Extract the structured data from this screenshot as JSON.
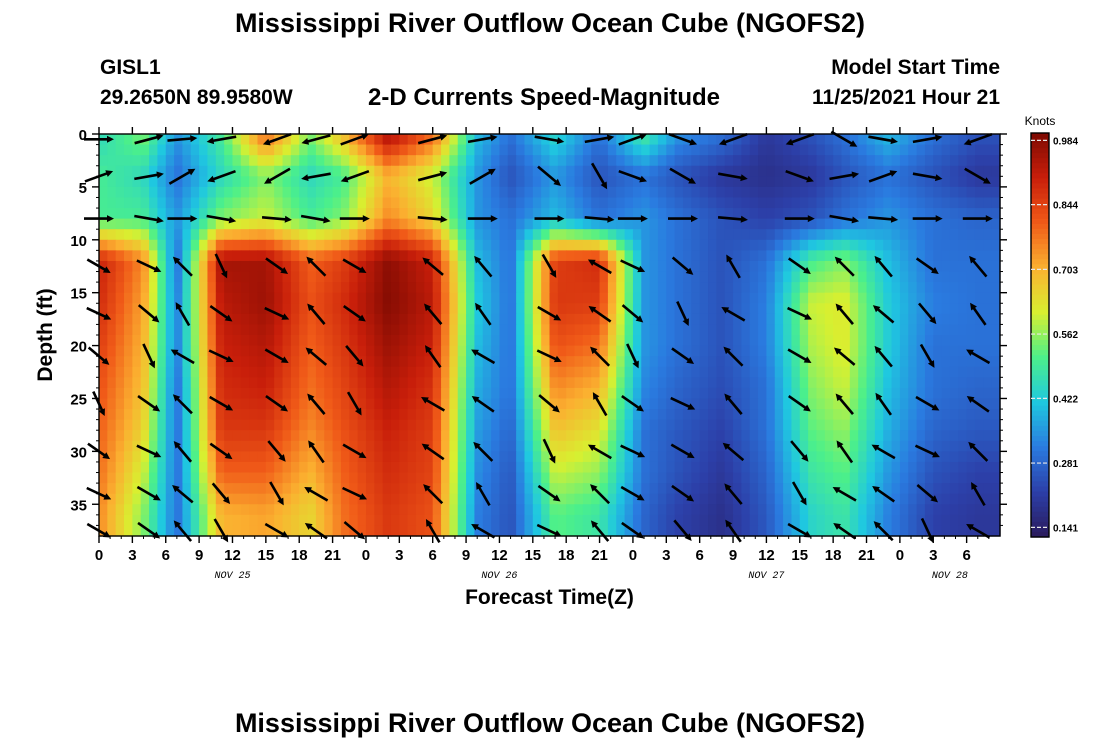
{
  "page": {
    "title": "Mississippi River Outflow Ocean Cube (NGOFS2)",
    "title_repeat": "Mississippi River Outflow Ocean Cube (NGOFS2)",
    "station": "GISL1",
    "coordinates": "29.2650N  89.9580W",
    "subtitle": "2-D Currents Speed-Magnitude",
    "model_start_label": "Model Start Time",
    "model_start_value": "11/25/2021 Hour 21"
  },
  "chart_data": {
    "type": "heatmap",
    "xlabel": "Forecast Time(Z)",
    "ylabel": "Depth (ft)",
    "colorbar_label": "Knots",
    "colorbar_ticks": [
      0.141,
      0.281,
      0.422,
      0.562,
      0.703,
      0.844,
      0.984
    ],
    "colorbar_range": [
      0.12,
      1.0
    ],
    "colors": [
      "#2a1a5c",
      "#2c3fa8",
      "#2a7be0",
      "#1fc8e0",
      "#4cf08a",
      "#d8f030",
      "#fbb030",
      "#f05a18",
      "#c81e0a",
      "#7e0a02"
    ],
    "xlim": [
      0,
      81
    ],
    "x_units": "hours since NOV 25 00Z",
    "x_ticks": [
      "0",
      "3",
      "6",
      "9",
      "12",
      "15",
      "18",
      "21",
      "0",
      "3",
      "6",
      "9",
      "12",
      "15",
      "18",
      "21",
      "0",
      "3",
      "6",
      "9",
      "12",
      "15",
      "18",
      "21",
      "0",
      "3",
      "6"
    ],
    "date_labels": [
      {
        "label": "NOV 25",
        "x": 12
      },
      {
        "label": "NOV 26",
        "x": 36
      },
      {
        "label": "NOV 27",
        "x": 60
      },
      {
        "label": "NOV 28",
        "x": 76.5
      }
    ],
    "ylim": [
      0,
      38
    ],
    "y_inverted": true,
    "y_ticks": [
      0,
      5,
      10,
      15,
      20,
      25,
      30,
      35
    ],
    "times": [
      0,
      4,
      7,
      11,
      15,
      19,
      22,
      26,
      30,
      34,
      37,
      41,
      45,
      49,
      52,
      56,
      60,
      64,
      67,
      71,
      75,
      79
    ],
    "depth_levels": [
      0,
      4,
      8,
      12,
      16,
      20,
      24,
      28,
      32,
      36
    ],
    "speed_knots": [
      [
        0.45,
        0.55,
        0.35,
        0.5,
        0.8,
        0.55,
        0.7,
        0.95,
        0.8,
        0.4,
        0.3,
        0.45,
        0.3,
        0.5,
        0.35,
        0.3,
        0.2,
        0.25,
        0.3,
        0.4,
        0.3,
        0.25
      ],
      [
        0.5,
        0.45,
        0.3,
        0.45,
        0.55,
        0.45,
        0.5,
        0.7,
        0.6,
        0.35,
        0.25,
        0.35,
        0.25,
        0.3,
        0.25,
        0.2,
        0.18,
        0.2,
        0.25,
        0.3,
        0.25,
        0.2
      ],
      [
        0.5,
        0.5,
        0.35,
        0.55,
        0.6,
        0.5,
        0.55,
        0.75,
        0.65,
        0.35,
        0.3,
        0.4,
        0.3,
        0.35,
        0.3,
        0.25,
        0.22,
        0.25,
        0.3,
        0.35,
        0.3,
        0.28
      ],
      [
        0.9,
        0.75,
        0.3,
        0.95,
        0.95,
        0.8,
        0.85,
        0.98,
        0.9,
        0.4,
        0.3,
        0.85,
        0.88,
        0.35,
        0.3,
        0.25,
        0.3,
        0.5,
        0.55,
        0.4,
        0.3,
        0.3
      ],
      [
        0.88,
        0.72,
        0.32,
        0.92,
        0.96,
        0.82,
        0.88,
        0.99,
        0.92,
        0.42,
        0.3,
        0.86,
        0.85,
        0.35,
        0.3,
        0.25,
        0.32,
        0.6,
        0.62,
        0.42,
        0.32,
        0.3
      ],
      [
        0.85,
        0.7,
        0.32,
        0.9,
        0.93,
        0.8,
        0.86,
        0.96,
        0.9,
        0.4,
        0.3,
        0.82,
        0.78,
        0.35,
        0.3,
        0.25,
        0.32,
        0.58,
        0.62,
        0.42,
        0.3,
        0.3
      ],
      [
        0.82,
        0.68,
        0.3,
        0.88,
        0.9,
        0.78,
        0.84,
        0.93,
        0.87,
        0.38,
        0.3,
        0.75,
        0.7,
        0.33,
        0.28,
        0.24,
        0.3,
        0.55,
        0.6,
        0.4,
        0.3,
        0.28
      ],
      [
        0.8,
        0.65,
        0.3,
        0.86,
        0.86,
        0.75,
        0.82,
        0.9,
        0.85,
        0.36,
        0.28,
        0.68,
        0.63,
        0.3,
        0.26,
        0.22,
        0.3,
        0.52,
        0.56,
        0.38,
        0.28,
        0.26
      ],
      [
        0.78,
        0.6,
        0.3,
        0.8,
        0.8,
        0.7,
        0.8,
        0.88,
        0.84,
        0.34,
        0.26,
        0.6,
        0.56,
        0.3,
        0.25,
        0.2,
        0.28,
        0.48,
        0.52,
        0.35,
        0.25,
        0.22
      ],
      [
        0.75,
        0.55,
        0.3,
        0.7,
        0.72,
        0.65,
        0.78,
        0.86,
        0.82,
        0.32,
        0.25,
        0.52,
        0.48,
        0.28,
        0.22,
        0.18,
        0.26,
        0.44,
        0.48,
        0.32,
        0.22,
        0.2
      ]
    ],
    "vector_times": [
      0,
      4.5,
      7.5,
      11,
      16,
      19.5,
      23,
      30,
      34.5,
      40.5,
      45,
      48,
      52.5,
      57,
      63,
      67,
      70.5,
      74.5,
      79
    ],
    "vector_depths": [
      0.5,
      4,
      8,
      12.5,
      17,
      21,
      25.5,
      30,
      34,
      37.5
    ],
    "vector_angles_deg": {
      "surface": [
        0,
        15,
        5,
        190,
        200,
        195,
        20,
        15,
        10,
        350,
        10,
        20,
        340,
        200,
        200,
        330,
        350,
        10,
        200
      ],
      "mid": [
        20,
        10,
        30,
        200,
        210,
        190,
        200,
        15,
        30,
        320,
        300,
        340,
        330,
        350,
        340,
        10,
        20,
        350,
        330
      ],
      "layer8": [
        0,
        350,
        0,
        350,
        355,
        350,
        0,
        355,
        0,
        0,
        355,
        0,
        0,
        355,
        0,
        350,
        355,
        0,
        0
      ],
      "lower_a": [
        325,
        310,
        300,
        330,
        335,
        320,
        295,
        325,
        335,
        330
      ],
      "lower_b": [
        140,
        130,
        125,
        150,
        145,
        135,
        120,
        150,
        135,
        130
      ]
    }
  }
}
